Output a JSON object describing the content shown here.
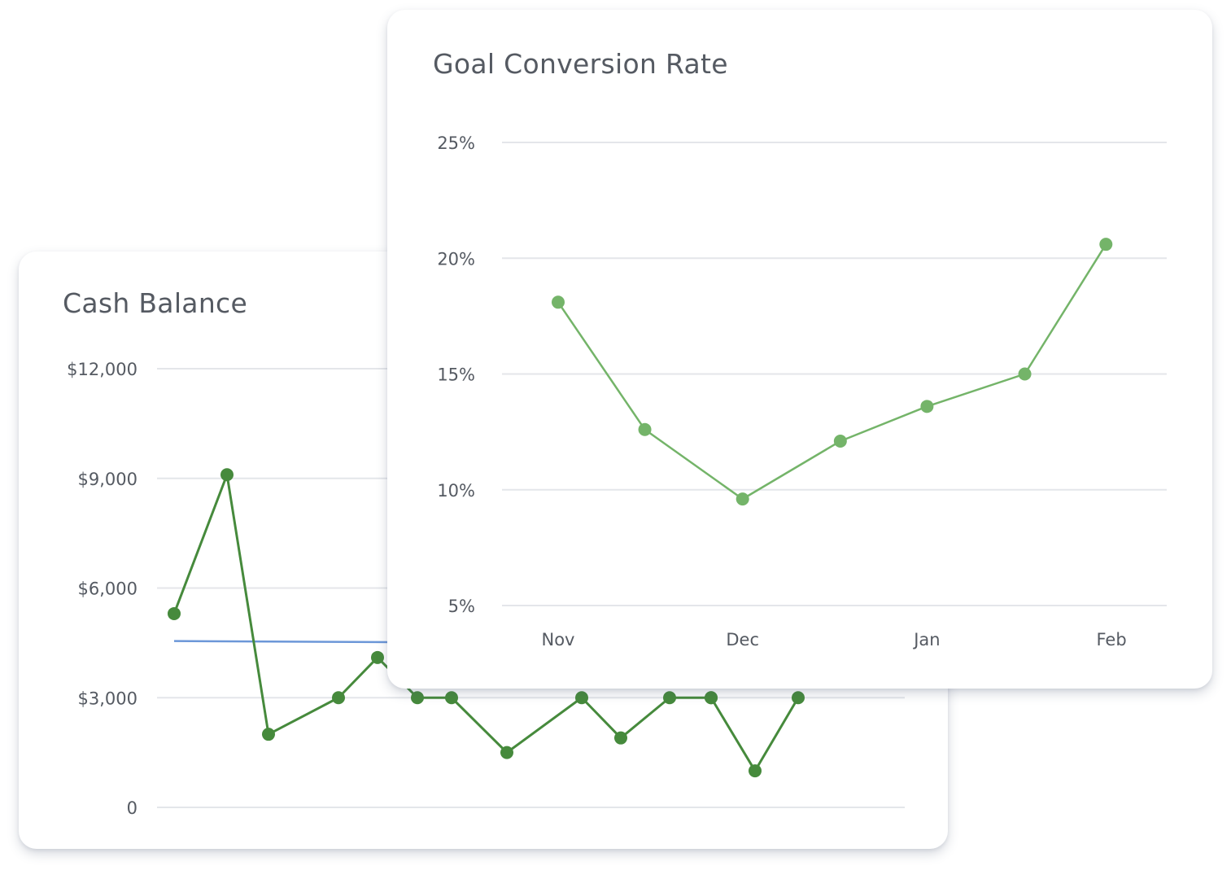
{
  "chart_data": [
    {
      "type": "line",
      "title": "Cash Balance",
      "ylabel": "",
      "xlabel": "",
      "ylim": [
        0,
        12000
      ],
      "y_ticks": [
        "0",
        "$3,000",
        "$6,000",
        "$9,000",
        "$12,000"
      ],
      "y_tick_values": [
        0,
        3000,
        6000,
        9000,
        12000
      ],
      "x_index_range": [
        0,
        19
      ],
      "series": [
        {
          "color": "#468a3c",
          "points": [
            [
              0,
              5300
            ],
            [
              1,
              9100
            ],
            [
              2,
              2000
            ],
            [
              3,
              3000
            ],
            [
              4,
              4100
            ],
            [
              5,
              3000
            ],
            [
              6,
              3000
            ],
            [
              7,
              1500
            ],
            [
              8,
              3000
            ],
            [
              9,
              1900
            ],
            [
              10,
              3000
            ],
            [
              11,
              3000
            ],
            [
              12,
              3000
            ],
            [
              13,
              1000
            ],
            [
              14,
              3000
            ]
          ]
        },
        {
          "color": "#6c97d8",
          "points": [
            [
              0,
              4550
            ],
            [
              19,
              4450
            ]
          ]
        }
      ],
      "grid": true,
      "legend": "none"
    },
    {
      "type": "line",
      "title": "Goal Conversion Rate",
      "ylabel": "",
      "xlabel": "",
      "ylim": [
        5,
        25
      ],
      "y_ticks": [
        "5%",
        "10%",
        "15%",
        "20%",
        "25%"
      ],
      "y_tick_values": [
        5,
        10,
        15,
        20,
        25
      ],
      "x_ticks": [
        "Nov",
        "Dec",
        "Jan",
        "Feb"
      ],
      "series": [
        {
          "color": "#74b469",
          "x": [
            0,
            0.47,
            1,
            1.53,
            2,
            2.53,
            2.97
          ],
          "values": [
            18.1,
            12.6,
            9.6,
            12.1,
            13.6,
            15.0,
            20.6
          ]
        }
      ],
      "grid": true,
      "legend": "none"
    }
  ]
}
